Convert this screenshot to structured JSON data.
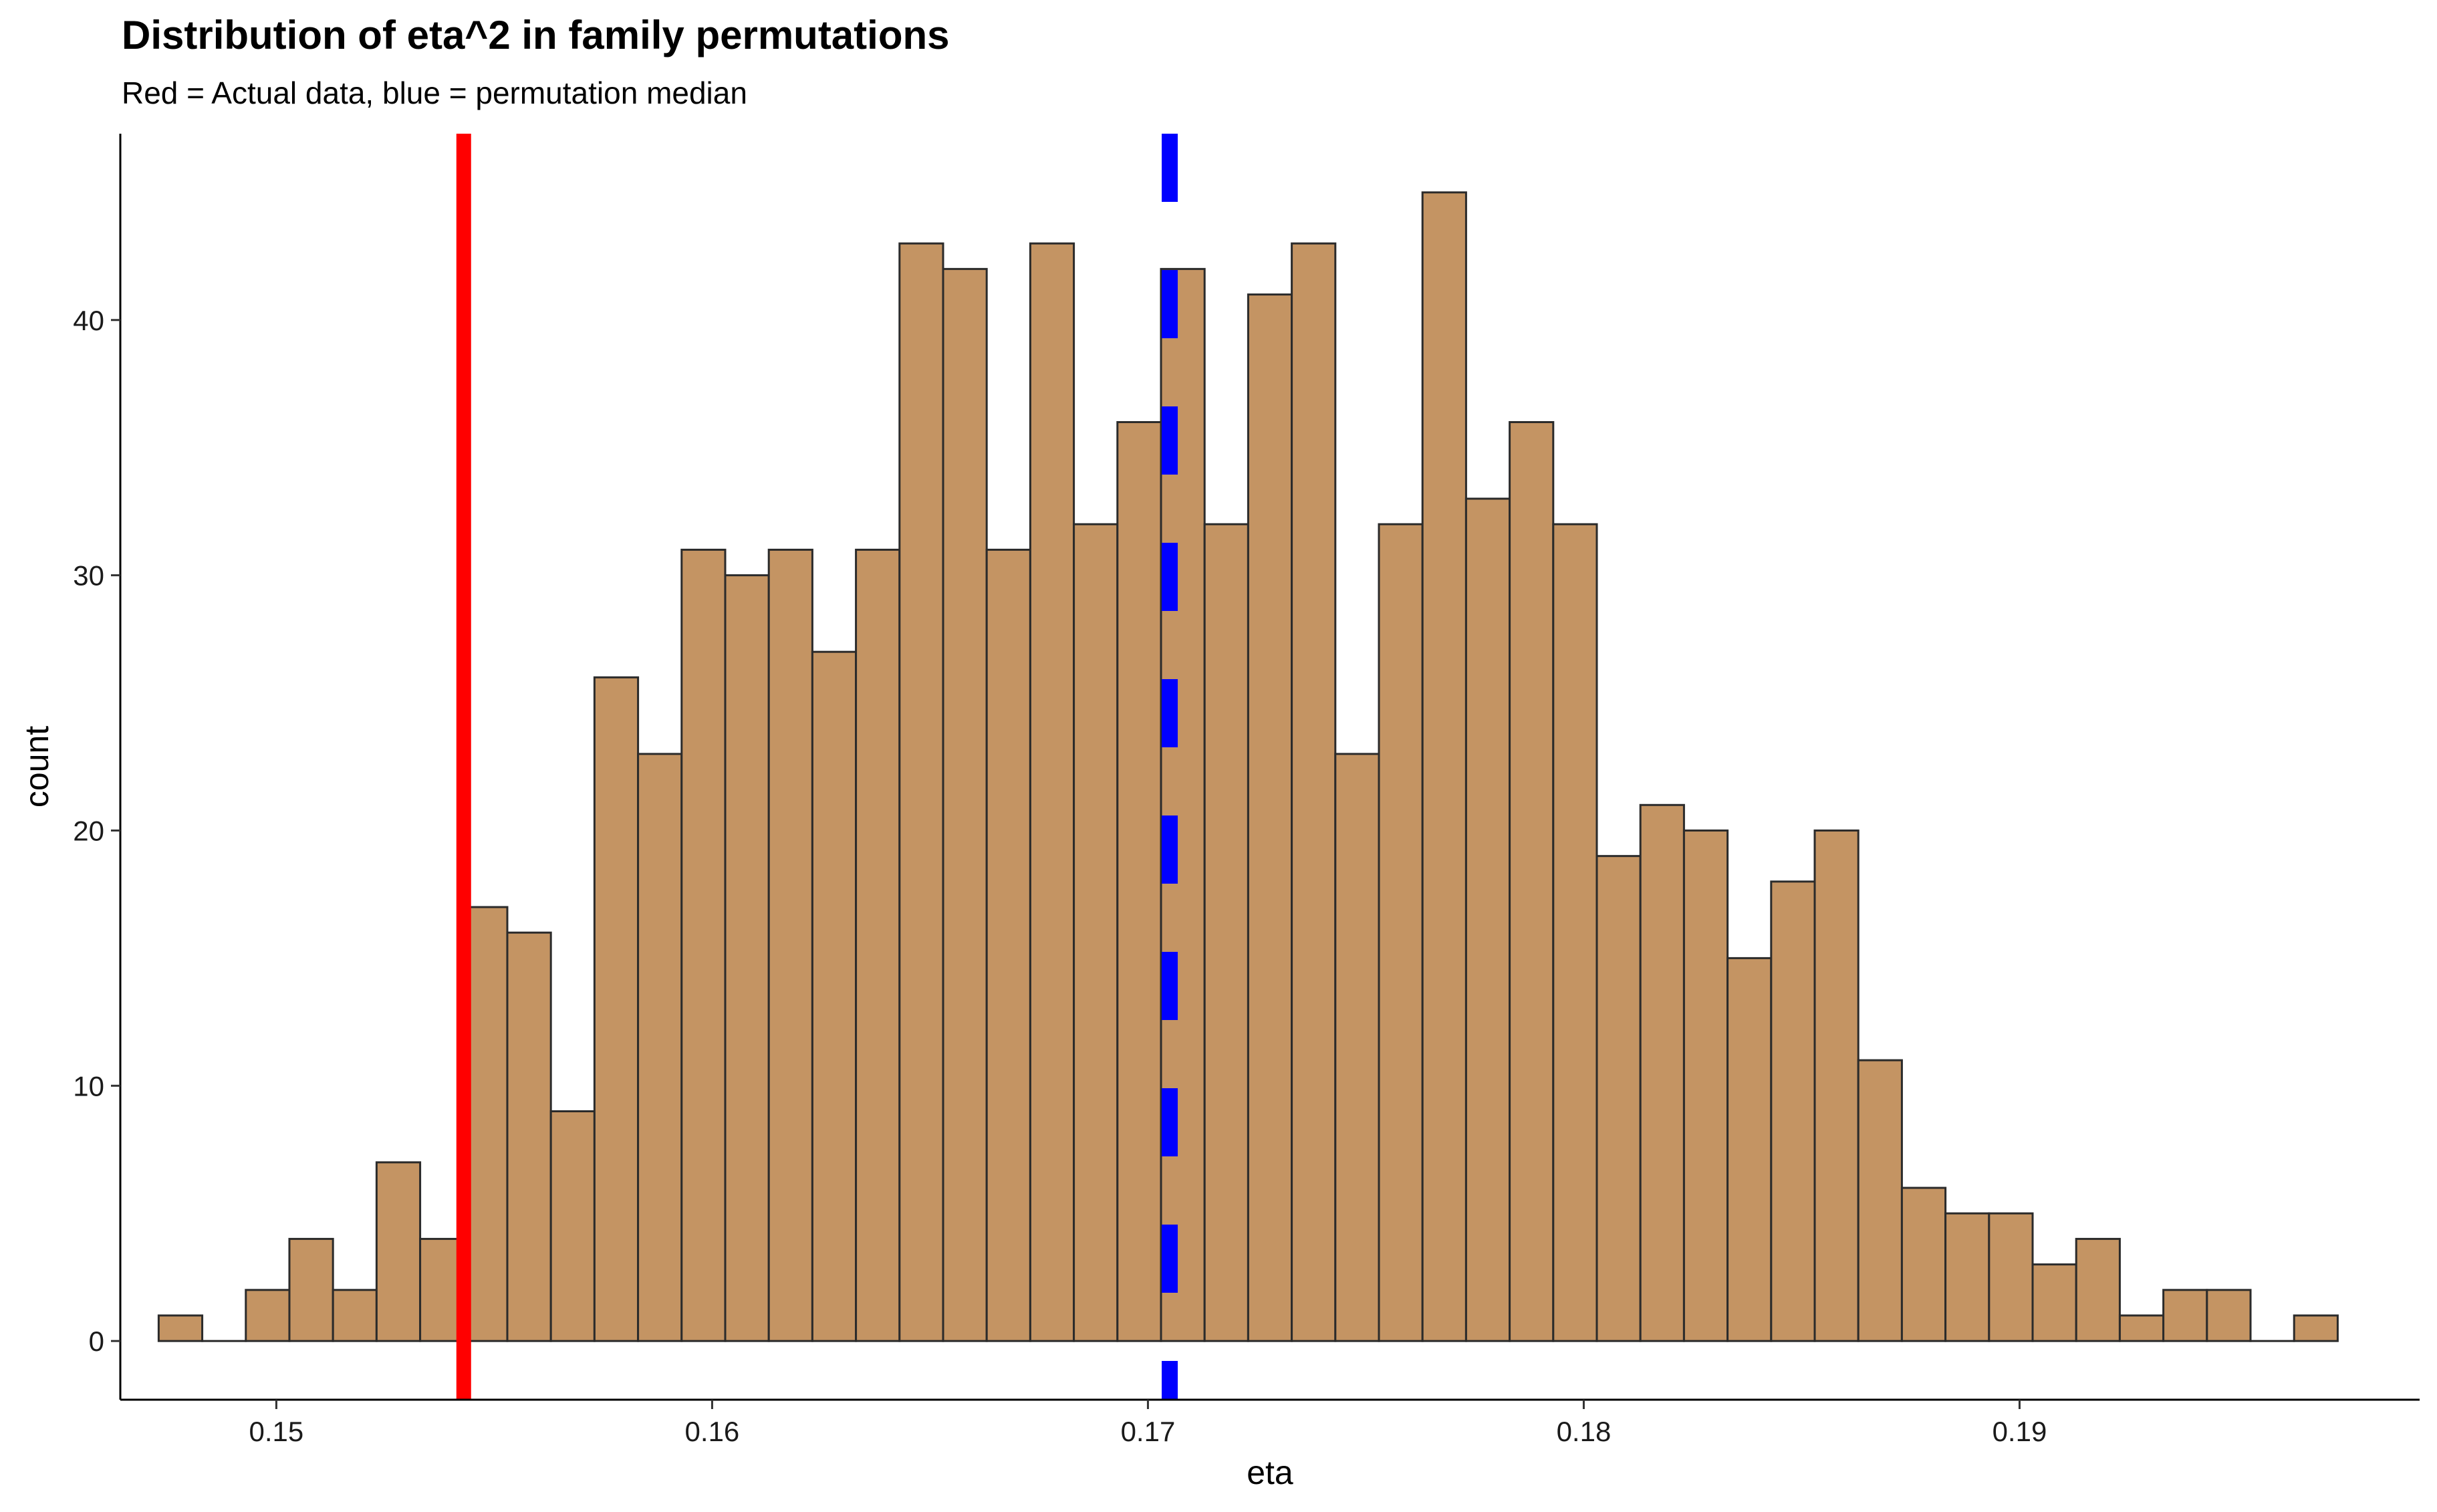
{
  "chart_data": {
    "type": "bar",
    "title": "Distribution of eta^2 in family permutations",
    "subtitle": "Red = Actual data, blue = permutation median",
    "xlabel": "eta",
    "ylabel": "count",
    "xlim": [
      0.14642,
      0.19918
    ],
    "ylim": [
      -2.3,
      47.3
    ],
    "x_ticks": [
      0.15,
      0.16,
      0.17,
      0.18,
      0.19
    ],
    "x_tick_labels": [
      "0.15",
      "0.16",
      "0.17",
      "0.18",
      "0.19"
    ],
    "y_ticks": [
      0,
      10,
      20,
      30,
      40
    ],
    "y_tick_labels": [
      "0",
      "10",
      "20",
      "30",
      "40"
    ],
    "bin_start": 0.1473,
    "bin_width": 0.001,
    "counts": [
      1,
      0,
      2,
      4,
      2,
      7,
      4,
      17,
      16,
      9,
      26,
      23,
      31,
      30,
      31,
      27,
      31,
      43,
      42,
      31,
      43,
      32,
      36,
      42,
      32,
      41,
      43,
      23,
      32,
      45,
      33,
      36,
      32,
      19,
      21,
      20,
      15,
      18,
      20,
      11,
      6,
      5,
      5,
      3,
      4,
      1,
      2,
      2,
      0,
      1
    ],
    "reference_lines": [
      {
        "value": 0.1543,
        "color": "#ff0000",
        "style": "solid"
      },
      {
        "value": 0.1705,
        "color": "#0000ff",
        "style": "dashed"
      }
    ],
    "bar_fill": "#c49463",
    "bar_outline": "#2b2b2b",
    "grid": false,
    "legend": "none"
  }
}
